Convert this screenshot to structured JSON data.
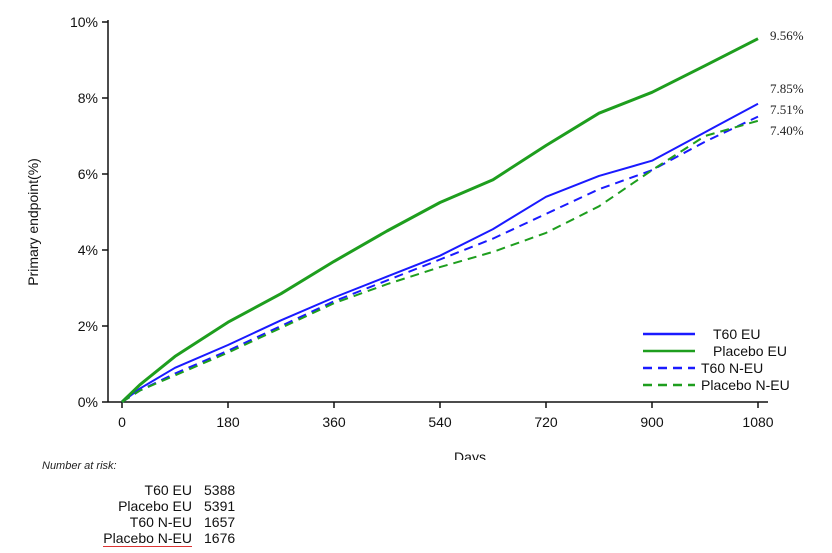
{
  "chart_data": {
    "type": "line",
    "title": "",
    "xlabel": "Days",
    "ylabel": "Primary endpoint(%)",
    "xlim": [
      0,
      1080
    ],
    "ylim": [
      0,
      10
    ],
    "x_ticks": [
      0,
      180,
      360,
      540,
      720,
      900,
      1080
    ],
    "y_ticks": [
      {
        "value": 0,
        "label": "0%"
      },
      {
        "value": 2,
        "label": "2%"
      },
      {
        "value": 4,
        "label": "4%"
      },
      {
        "value": 6,
        "label": "6%"
      },
      {
        "value": 8,
        "label": "8%"
      },
      {
        "value": 10,
        "label": "10%"
      }
    ],
    "legend_position": "bottom-right",
    "series": [
      {
        "name": "T60 EU",
        "color": "#1a1aff",
        "dash": "solid",
        "end_label": "7.85%",
        "x": [
          0,
          30,
          90,
          180,
          270,
          360,
          450,
          540,
          630,
          720,
          810,
          900,
          990,
          1080
        ],
        "y": [
          0,
          0.35,
          0.9,
          1.5,
          2.15,
          2.75,
          3.3,
          3.85,
          4.55,
          5.4,
          5.95,
          6.35,
          7.1,
          7.85
        ]
      },
      {
        "name": "Placebo EU",
        "color": "#1e9e1e",
        "dash": "solid",
        "end_label": "9.56%",
        "x": [
          0,
          30,
          90,
          180,
          270,
          360,
          450,
          540,
          630,
          720,
          810,
          900,
          990,
          1080
        ],
        "y": [
          0,
          0.45,
          1.2,
          2.1,
          2.85,
          3.7,
          4.5,
          5.25,
          5.85,
          6.75,
          7.6,
          8.15,
          8.85,
          9.56
        ]
      },
      {
        "name": "T60 N-EU",
        "color": "#1a1aff",
        "dash": "dashed",
        "end_label": "7.51%",
        "x": [
          0,
          30,
          90,
          180,
          270,
          360,
          450,
          540,
          630,
          720,
          810,
          900,
          990,
          1080
        ],
        "y": [
          0,
          0.3,
          0.75,
          1.35,
          2.0,
          2.65,
          3.2,
          3.75,
          4.3,
          4.95,
          5.6,
          6.1,
          6.85,
          7.51
        ]
      },
      {
        "name": "Placebo N-EU",
        "color": "#1e9e1e",
        "dash": "dashed",
        "end_label": "7.40%",
        "x": [
          0,
          30,
          90,
          180,
          270,
          360,
          450,
          540,
          630,
          720,
          810,
          900,
          990,
          1080
        ],
        "y": [
          0,
          0.3,
          0.7,
          1.3,
          1.95,
          2.6,
          3.1,
          3.55,
          3.95,
          4.45,
          5.15,
          6.1,
          7.0,
          7.4
        ]
      }
    ]
  },
  "risk_table": {
    "title": "Number at risk:",
    "rows": [
      {
        "label": "T60 EU",
        "value": "5388"
      },
      {
        "label": "Placebo EU",
        "value": "5391"
      },
      {
        "label": "T60 N-EU",
        "value": "1657"
      },
      {
        "label": "Placebo N-EU",
        "value": "1676"
      }
    ]
  }
}
